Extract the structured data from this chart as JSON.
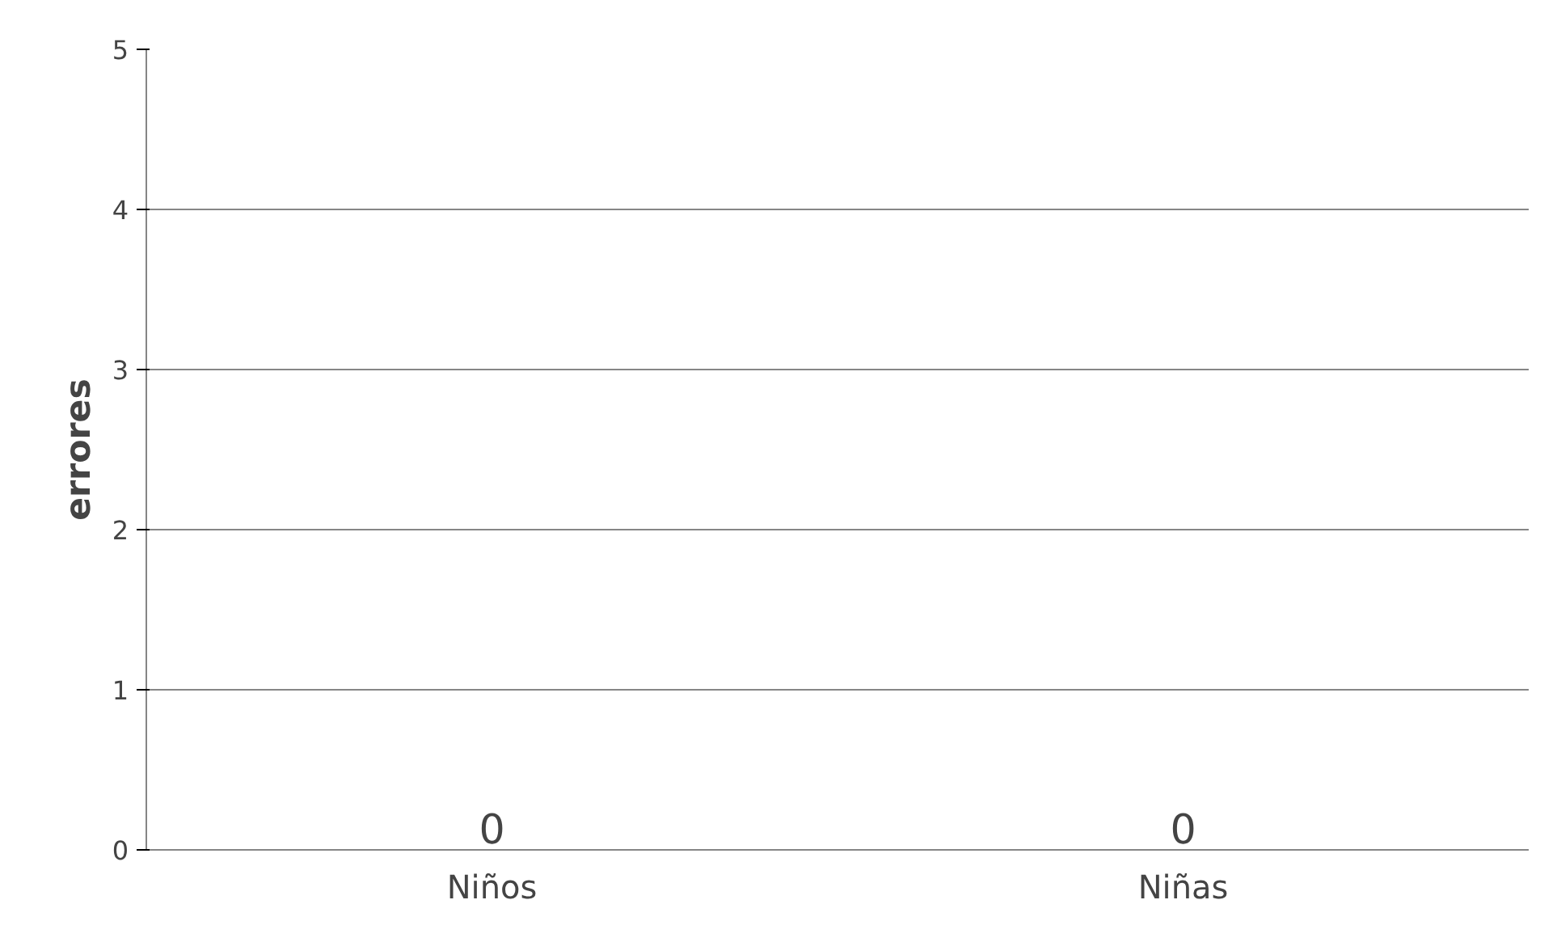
{
  "chart_data": {
    "type": "bar",
    "ylabel": "errores",
    "categories": [
      "Niños",
      "Niñas"
    ],
    "values": [
      0,
      0
    ],
    "ylim": [
      0,
      5
    ],
    "yticks": [
      0,
      1,
      2,
      3,
      4,
      5
    ],
    "grid": "y",
    "data_labels": true
  }
}
